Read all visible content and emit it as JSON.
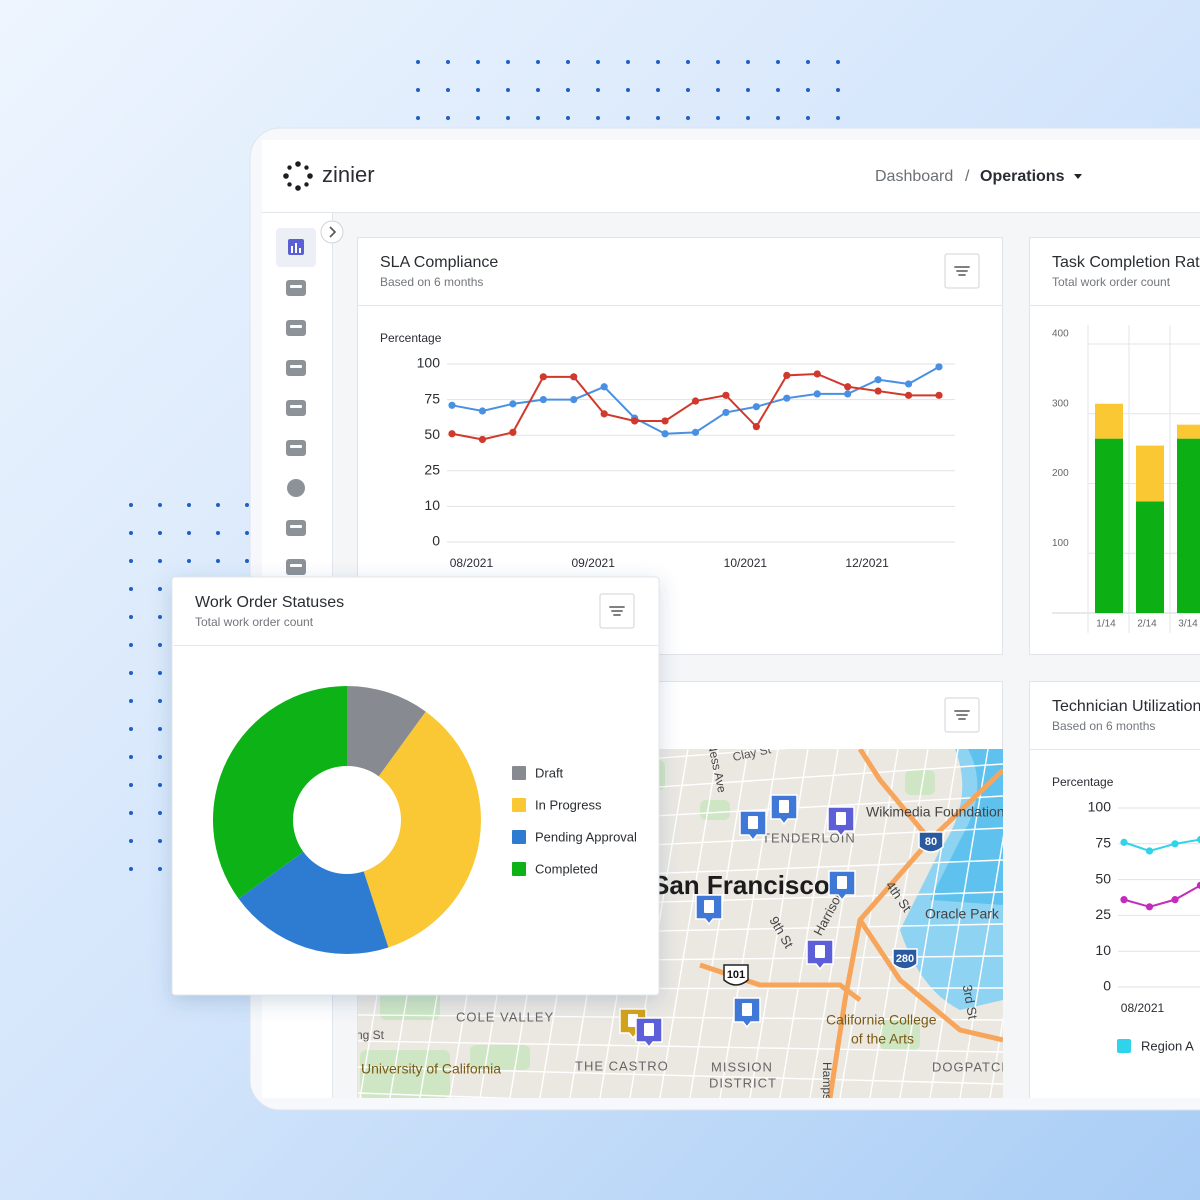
{
  "header": {
    "logo": "zinier",
    "breadcrumb": {
      "parent": "Dashboard",
      "separator": "/",
      "current": "Operations"
    }
  },
  "sla_chart": {
    "type": "line",
    "title": "SLA Compliance",
    "subtitle": "Based on 6 months",
    "y_label": "Percentage",
    "categories": [
      null,
      "08/2021",
      null,
      null,
      null,
      "09/2021",
      null,
      null,
      null,
      null,
      "10/2021",
      null,
      null,
      null,
      "12/2021",
      null,
      null
    ],
    "series": [
      {
        "color": "#4a90e2",
        "values": [
          71,
          67,
          72,
          75,
          75,
          84,
          62,
          51,
          52,
          66,
          70,
          76,
          79,
          79,
          89,
          86,
          98
        ]
      },
      {
        "color": "#d0392b",
        "values": [
          51,
          47,
          52,
          91,
          91,
          65,
          60,
          60,
          74,
          78,
          56,
          92,
          93,
          84,
          81,
          78,
          78
        ]
      }
    ],
    "ylim": [
      0,
      100
    ],
    "yticks": [
      0,
      10,
      25,
      50,
      75,
      100
    ],
    "grid": true
  },
  "task_chart": {
    "type": "stacked_bar",
    "title": "Task Completion Rate",
    "subtitle": "Total work order count",
    "categories": [
      "1/14",
      "2/14",
      "3/14"
    ],
    "series": [
      {
        "color": "#0cb014",
        "values": [
          250,
          160,
          250
        ]
      },
      {
        "color": "#f9c833",
        "values": [
          50,
          80,
          20
        ]
      }
    ],
    "ylim": [
      0,
      400
    ],
    "yticks": [
      100,
      200,
      300,
      400
    ],
    "grid": true
  },
  "map": {
    "labels": [
      "Clay St",
      "Wikimedia Foundation",
      "TENDERLOIN",
      "San Francisco",
      "4th St",
      "Oracle Park",
      "9th St",
      "Harrison St",
      "COLE VALLEY",
      "California College",
      "of the Arts",
      "Irving St",
      "University of California",
      "THE CASTRO",
      "MISSION",
      "DISTRICT",
      "DOGPATCH",
      "3rd St",
      "Hampshire St",
      "Van Ness Ave"
    ],
    "shields": [
      "80",
      "280",
      "101"
    ]
  },
  "tech_chart": {
    "type": "line",
    "title": "Technician Utilization",
    "subtitle": "Based on 6 months",
    "y_label": "Percentage",
    "categories": [
      null,
      "08/2021",
      null,
      null
    ],
    "series": [
      {
        "name": "Region A",
        "color": "#2fd3ea",
        "values": [
          76,
          70,
          75,
          78
        ]
      },
      {
        "color": "#c42bbd",
        "values": [
          36,
          31,
          36,
          46
        ]
      }
    ],
    "ylim": [
      0,
      100
    ],
    "yticks": [
      0,
      10,
      25,
      50,
      75,
      100
    ],
    "grid": true
  },
  "status_chart": {
    "type": "donut",
    "title": "Work Order Statuses",
    "subtitle": "Total work order count",
    "categories": [
      "Draft",
      "In Progress",
      "Pending Approval",
      "Completed"
    ],
    "values": [
      10,
      35,
      20,
      35
    ],
    "colors": [
      "#878b91",
      "#fbc834",
      "#2e7bd2",
      "#0bb214"
    ]
  }
}
